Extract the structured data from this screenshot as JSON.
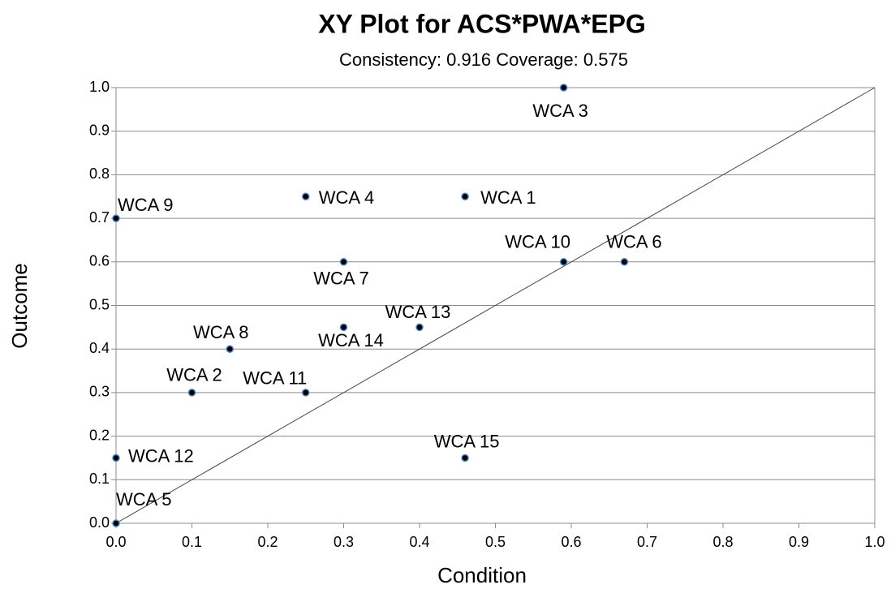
{
  "chart_data": {
    "type": "scatter",
    "title": "XY Plot for ACS*PWA*EPG",
    "subtitle": "Consistency: 0.916  Coverage: 0.575",
    "x_label": "Condition",
    "y_label": "Outcome",
    "labels": [
      "WCA 1",
      "WCA 2",
      "WCA 3",
      "WCA 4",
      "WCA 5",
      "WCA 6",
      "WCA 7",
      "WCA 8",
      "WCA 9",
      "WCA 10",
      "WCA 11",
      "WCA 12",
      "WCA 13",
      "WCA 14",
      "WCA 15"
    ],
    "x": [
      0.46,
      0.1,
      0.59,
      0.25,
      0,
      0.67,
      0.3,
      0.15,
      0,
      0.59,
      0.25,
      0,
      0.4,
      0.3,
      0.46
    ],
    "y": [
      0.75,
      0.3,
      1.0,
      0.75,
      0,
      0.6,
      0.6,
      0.4,
      0.7,
      0.6,
      0.3,
      0.15,
      0.45,
      0.45,
      0.15
    ],
    "color": "#000000",
    "edge_color": "#4f81bd",
    "xlim": [
      0,
      1
    ],
    "ylim": [
      0,
      1
    ],
    "xticks": [
      {
        "value": 0,
        "label": "0.0"
      },
      0.1,
      0.2,
      0.3,
      0.4,
      0.5,
      0.6,
      0.7,
      0.8,
      0.9,
      {
        "value": 1,
        "label": "1.0"
      }
    ],
    "yticks": [
      {
        "value": 0,
        "label": "0.0"
      },
      0.1,
      0.2,
      0.3,
      0.4,
      0.5,
      0.6,
      0.7,
      0.8,
      0.9,
      {
        "value": 1,
        "label": "1.0"
      }
    ],
    "grid": true
  }
}
